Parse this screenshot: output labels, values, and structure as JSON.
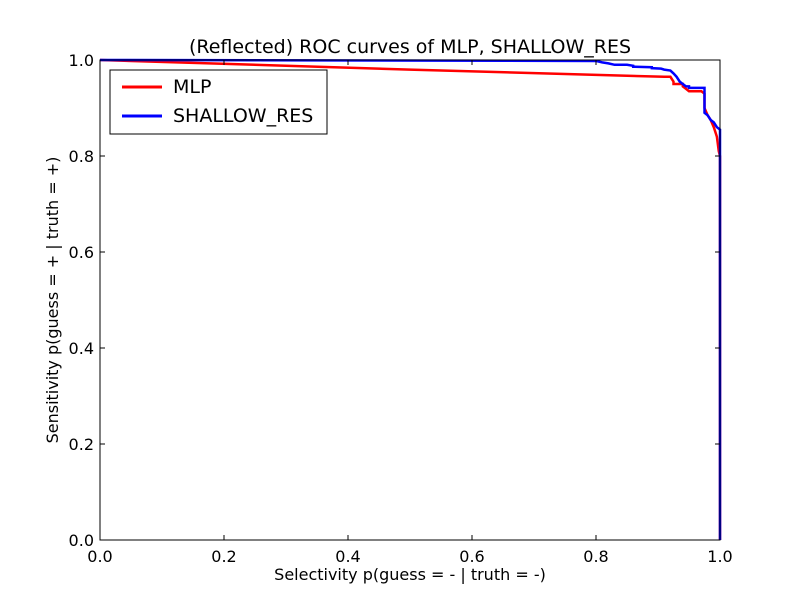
{
  "chart_data": {
    "type": "line",
    "title": "(Reflected) ROC curves of MLP, SHALLOW_RES",
    "xlabel": "Selectivity p(guess = - | truth = -)",
    "ylabel": "Sensitivity p(guess = + | truth = +)",
    "xlim": [
      0.0,
      1.0
    ],
    "ylim": [
      0.0,
      1.0
    ],
    "xticks": [
      "0.0",
      "0.2",
      "0.4",
      "0.6",
      "0.8",
      "1.0"
    ],
    "yticks": [
      "0.0",
      "0.2",
      "0.4",
      "0.6",
      "0.8",
      "1.0"
    ],
    "grid": false,
    "legend_position": "top-left",
    "series": [
      {
        "name": "MLP",
        "color": "#ff0000",
        "x": [
          0.0,
          0.5,
          0.91,
          0.915,
          0.92,
          0.925,
          0.925,
          0.935,
          0.94,
          0.94,
          0.945,
          0.95,
          0.97,
          0.975,
          0.975,
          0.98,
          0.985,
          0.99,
          0.995,
          0.998,
          1.0,
          1.0
        ],
        "y": [
          1.0,
          0.98,
          0.965,
          0.965,
          0.965,
          0.955,
          0.95,
          0.95,
          0.95,
          0.945,
          0.94,
          0.935,
          0.935,
          0.93,
          0.9,
          0.885,
          0.875,
          0.86,
          0.84,
          0.81,
          0.8,
          0.0
        ]
      },
      {
        "name": "SHALLOW_RES",
        "color": "#0000ff",
        "x": [
          0.0,
          0.8,
          0.81,
          0.82,
          0.83,
          0.85,
          0.86,
          0.86,
          0.89,
          0.89,
          0.905,
          0.91,
          0.92,
          0.925,
          0.93,
          0.935,
          0.94,
          0.945,
          0.95,
          0.95,
          0.97,
          0.975,
          0.975,
          0.98,
          0.985,
          0.99,
          0.995,
          1.0,
          1.0
        ],
        "y": [
          1.0,
          0.998,
          0.995,
          0.993,
          0.99,
          0.99,
          0.988,
          0.986,
          0.985,
          0.983,
          0.982,
          0.98,
          0.978,
          0.972,
          0.965,
          0.955,
          0.95,
          0.945,
          0.945,
          0.942,
          0.942,
          0.942,
          0.89,
          0.885,
          0.875,
          0.87,
          0.86,
          0.855,
          0.0
        ]
      }
    ]
  }
}
